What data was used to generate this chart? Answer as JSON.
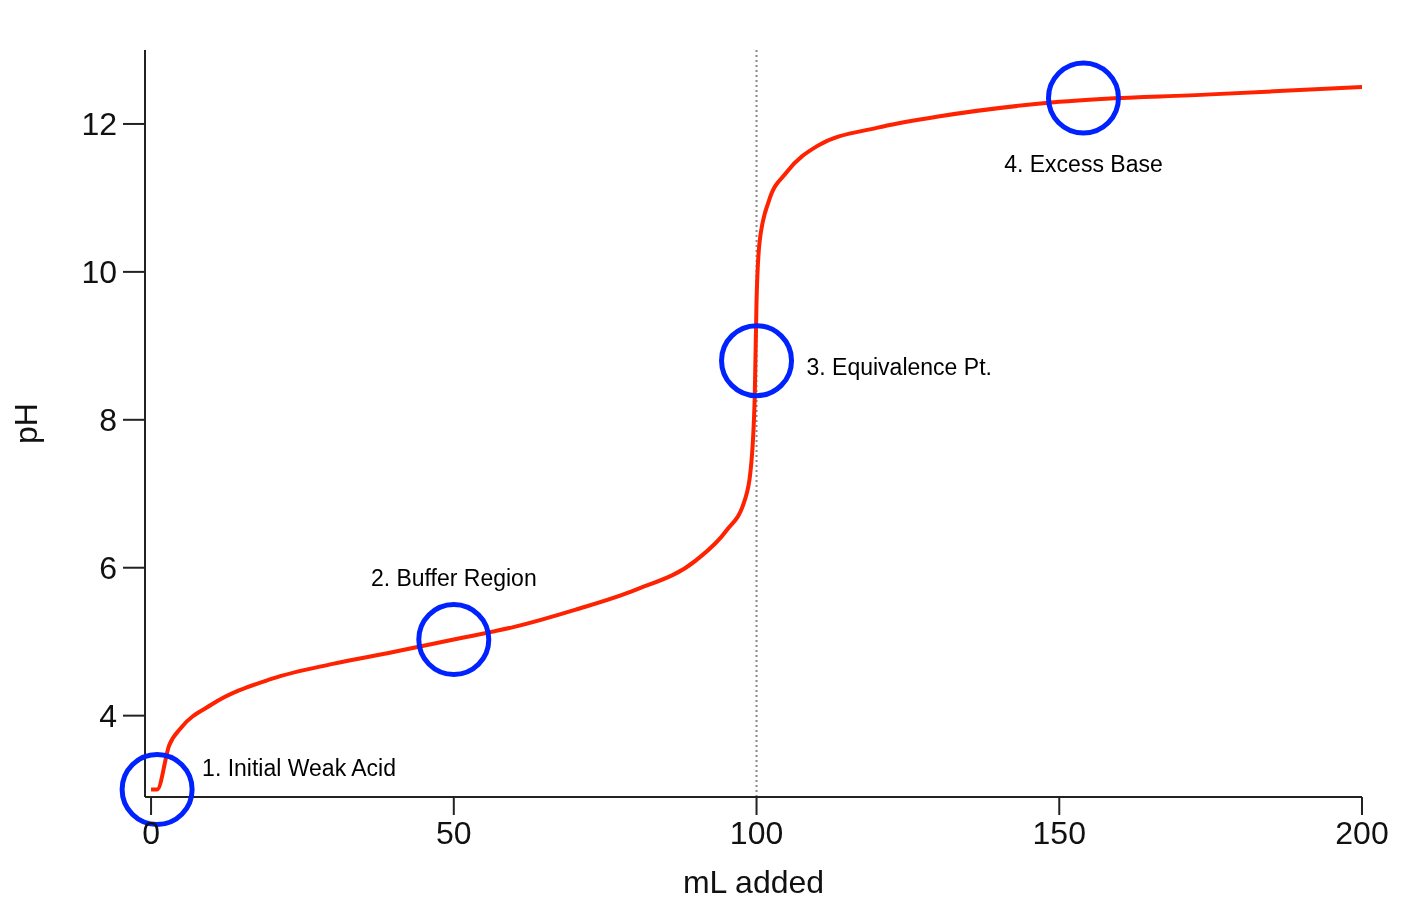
{
  "chart_data": {
    "type": "line",
    "xlabel": "mL added",
    "ylabel": "pH",
    "xlim": [
      -1,
      200
    ],
    "ylim": [
      2.9,
      13
    ],
    "xticks": [
      0,
      50,
      100,
      150,
      200
    ],
    "yticks": [
      4,
      6,
      8,
      10,
      12
    ],
    "marker": "none",
    "line_style": "solid",
    "series": [
      {
        "color": "#ff2200",
        "x": [
          0,
          1,
          3,
          5,
          10,
          20,
          30,
          40,
          50,
          60,
          70,
          80,
          90,
          95,
          98,
          99,
          99.7,
          100,
          100.5,
          102,
          105,
          110,
          120,
          130,
          150,
          175,
          200
        ],
        "values": [
          3.0,
          3.0,
          3.6,
          3.84,
          4.15,
          4.5,
          4.7,
          4.86,
          5.03,
          5.2,
          5.43,
          5.7,
          6.1,
          6.5,
          6.9,
          7.3,
          8.3,
          9.6,
          10.4,
          10.95,
          11.35,
          11.7,
          11.95,
          12.1,
          12.3,
          12.4,
          12.5
        ]
      }
    ],
    "ref_lines": [
      {
        "axis": "x",
        "value": 100,
        "color": "#888888",
        "line_style": "dotted"
      }
    ],
    "annotations": [
      {
        "text": "1. Initial Weak Acid",
        "x": 1,
        "y": 3.0
      },
      {
        "text": "2. Buffer Region",
        "x": 50,
        "y": 5.03
      },
      {
        "text": "3. Equivalence Pt.",
        "x": 100,
        "y": 8.8
      },
      {
        "text": "4. Excess Base",
        "x": 154,
        "y": 12.35
      }
    ]
  }
}
